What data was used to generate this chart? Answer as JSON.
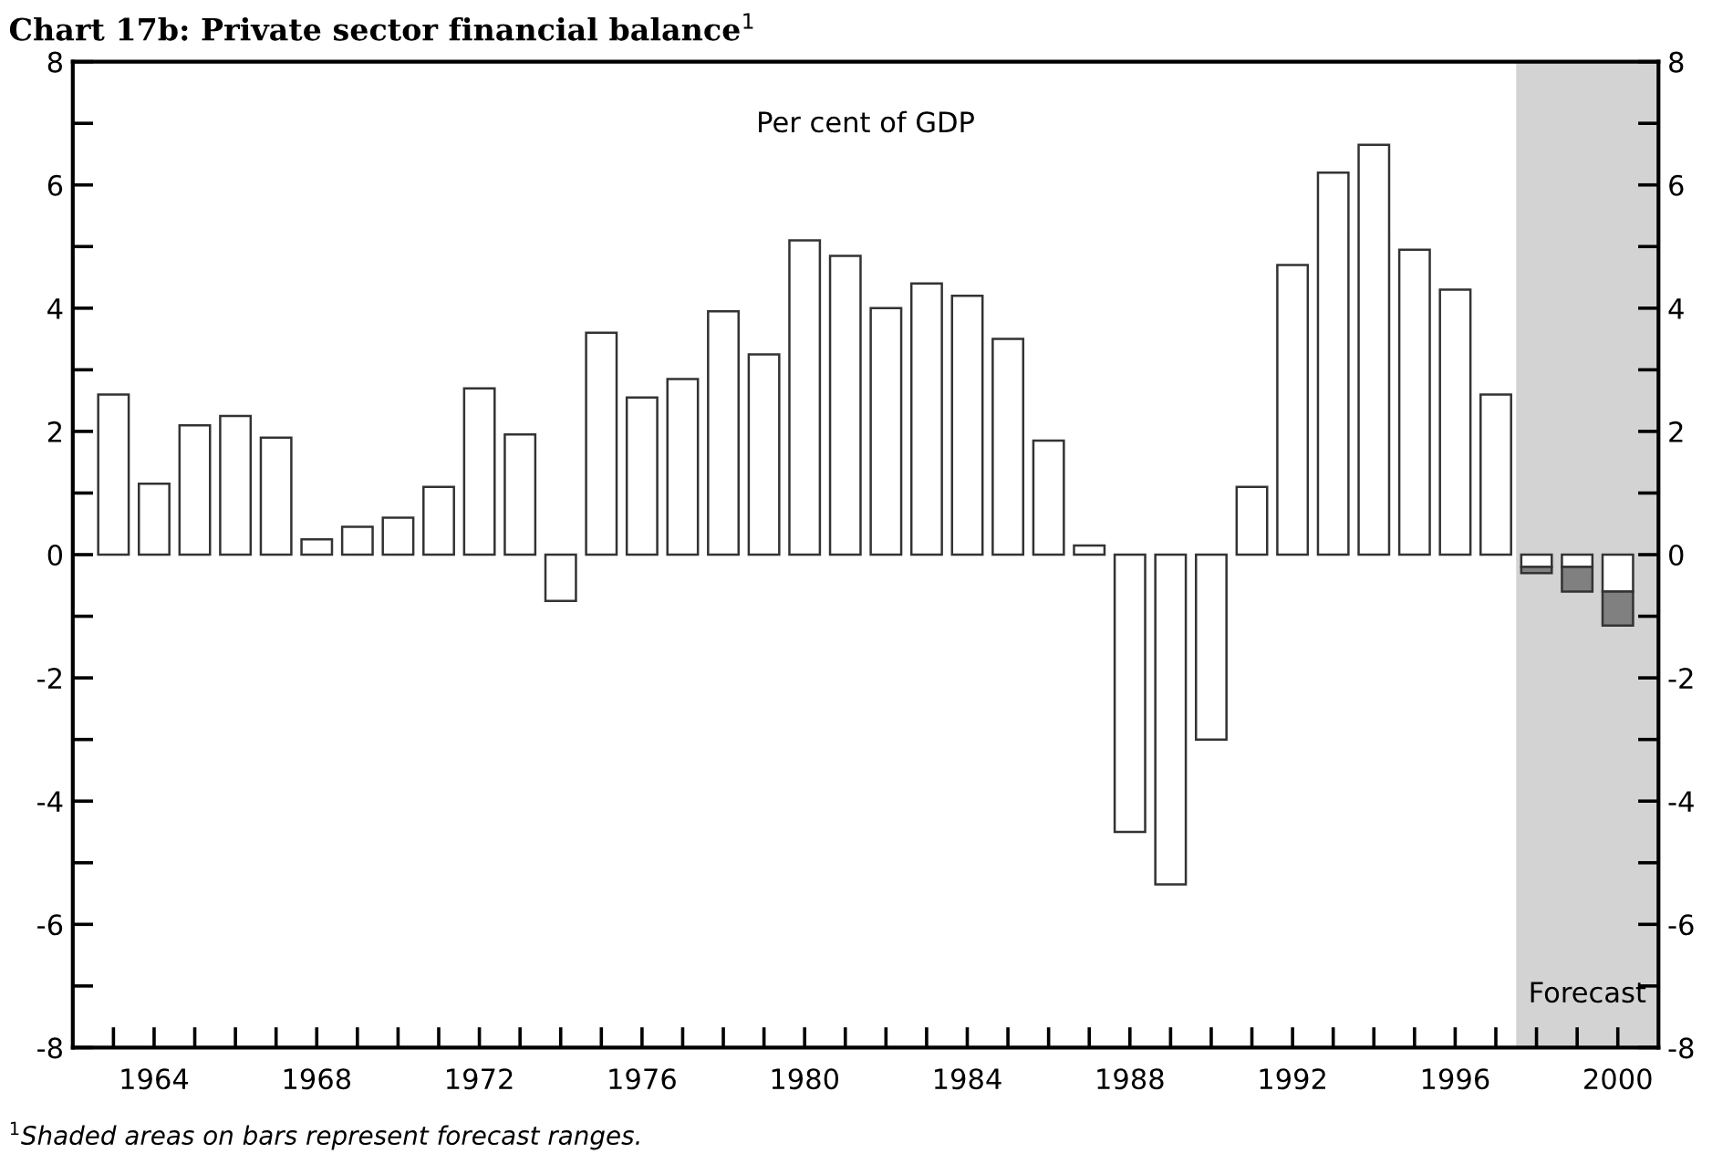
{
  "chart_data": {
    "type": "bar",
    "stacked": true,
    "title": "Chart 17b: Private sector financial balance$^{1}$",
    "annotations": [
      "Per cent of GDP",
      "$^{1}$Shaded areas on bars represent forecast ranges."
    ],
    "x": [
      1963,
      1964,
      1965,
      1966,
      1967,
      1968,
      1969,
      1970,
      1971,
      1972,
      1973,
      1974,
      1975,
      1976,
      1977,
      1978,
      1979,
      1980,
      1981,
      1982,
      1983,
      1984,
      1985,
      1986,
      1987,
      1988,
      1989,
      1990,
      1991,
      1992,
      1993,
      1994,
      1995,
      1996,
      1997,
      1998,
      1999,
      2000
    ],
    "series": [
      {
        "color": "#ffffff",
        "values": [
          2.6,
          1.15,
          2.1,
          2.25,
          1.9,
          0.25,
          0.45,
          0.6,
          1.1,
          2.7,
          1.95,
          -0.75,
          3.6,
          2.55,
          2.85,
          3.95,
          3.25,
          5.1,
          4.85,
          4.0,
          4.4,
          4.2,
          3.5,
          1.85,
          0.15,
          -4.5,
          -5.35,
          -3.0,
          1.1,
          4.7,
          6.2,
          6.65,
          4.95,
          4.3,
          2.6,
          -0.2,
          -0.2,
          -0.6
        ]
      },
      {
        "color": "#808080",
        "values": [
          null,
          null,
          null,
          null,
          null,
          null,
          null,
          null,
          null,
          null,
          null,
          null,
          null,
          null,
          null,
          null,
          null,
          null,
          null,
          null,
          null,
          null,
          null,
          null,
          null,
          null,
          null,
          null,
          null,
          null,
          null,
          null,
          null,
          null,
          null,
          -0.1,
          -0.4,
          -0.55
        ]
      }
    ],
    "bands": [
      {
        "axis": "x",
        "from": 1997.5,
        "to": 2001,
        "label": "Forecast",
        "color": "#d3d3d3"
      }
    ],
    "xlim": [
      1962,
      2001
    ],
    "xticks": [
      {
        "value": 1963,
        "label": null
      },
      {
        "value": 1964,
        "label": "1964"
      },
      {
        "value": 1965,
        "label": null
      },
      {
        "value": 1966,
        "label": null
      },
      {
        "value": 1967,
        "label": null
      },
      {
        "value": 1968,
        "label": "1968"
      },
      {
        "value": 1969,
        "label": null
      },
      {
        "value": 1970,
        "label": null
      },
      {
        "value": 1971,
        "label": null
      },
      {
        "value": 1972,
        "label": "1972"
      },
      {
        "value": 1973,
        "label": null
      },
      {
        "value": 1974,
        "label": null
      },
      {
        "value": 1975,
        "label": null
      },
      {
        "value": 1976,
        "label": "1976"
      },
      {
        "value": 1977,
        "label": null
      },
      {
        "value": 1978,
        "label": null
      },
      {
        "value": 1979,
        "label": null
      },
      {
        "value": 1980,
        "label": "1980"
      },
      {
        "value": 1981,
        "label": null
      },
      {
        "value": 1982,
        "label": null
      },
      {
        "value": 1983,
        "label": null
      },
      {
        "value": 1984,
        "label": "1984"
      },
      {
        "value": 1985,
        "label": null
      },
      {
        "value": 1986,
        "label": null
      },
      {
        "value": 1987,
        "label": null
      },
      {
        "value": 1988,
        "label": "1988"
      },
      {
        "value": 1989,
        "label": null
      },
      {
        "value": 1990,
        "label": null
      },
      {
        "value": 1991,
        "label": null
      },
      {
        "value": 1992,
        "label": "1992"
      },
      {
        "value": 1993,
        "label": null
      },
      {
        "value": 1994,
        "label": null
      },
      {
        "value": 1995,
        "label": null
      },
      {
        "value": 1996,
        "label": "1996"
      },
      {
        "value": 1997,
        "label": null
      },
      {
        "value": 1998,
        "label": null
      },
      {
        "value": 1999,
        "label": null
      },
      {
        "value": 2000,
        "label": "2000"
      }
    ],
    "ylim": [
      -8,
      8
    ],
    "yticks": [
      -8,
      {
        "value": -7,
        "label": null
      },
      -6,
      {
        "value": -5,
        "label": null
      },
      -4,
      {
        "value": -3,
        "label": null
      },
      -2,
      {
        "value": -1,
        "label": null
      },
      0,
      {
        "value": 1,
        "label": null
      },
      2,
      {
        "value": 3,
        "label": null
      },
      4,
      {
        "value": 5,
        "label": null
      },
      6,
      {
        "value": 7,
        "label": null
      },
      8
    ],
    "y2lim": [
      -8,
      8
    ],
    "y2ticks": [
      -8,
      {
        "value": -7,
        "label": null
      },
      -6,
      {
        "value": -5,
        "label": null
      },
      -4,
      {
        "value": -3,
        "label": null
      },
      -2,
      {
        "value": -1,
        "label": null
      },
      0,
      {
        "value": 1,
        "label": null
      },
      2,
      {
        "value": 3,
        "label": null
      },
      4,
      {
        "value": 5,
        "label": null
      },
      6,
      {
        "value": 7,
        "label": null
      },
      8
    ],
    "grid": false,
    "legend": false
  }
}
